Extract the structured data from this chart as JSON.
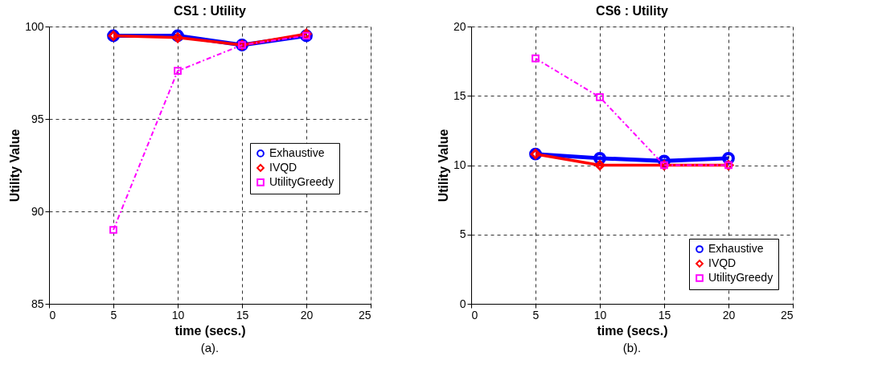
{
  "chart_data": [
    {
      "type": "line",
      "title": "CS1 : Utility",
      "xlabel": "time (secs.)",
      "ylabel": "Utility Value",
      "x": [
        5,
        10,
        15,
        20
      ],
      "xlim": [
        0,
        25
      ],
      "xticks": [
        0,
        5,
        10,
        15,
        20,
        25
      ],
      "ylim": [
        85,
        100
      ],
      "yticks": [
        85,
        90,
        95,
        100
      ],
      "grid": true,
      "legend": "right",
      "annotations": [
        "(a)."
      ],
      "series": [
        {
          "name": "Exhaustive",
          "color": "#0000ff",
          "values": [
            99.5,
            99.5,
            99.0,
            99.5
          ],
          "marker": "circle",
          "line_style": "solid"
        },
        {
          "name": "IVQD",
          "color": "#ff0000",
          "values": [
            99.5,
            99.4,
            99.0,
            99.6
          ],
          "marker": "diamond",
          "line_style": "solid"
        },
        {
          "name": "UtilityGreedy",
          "color": "#ff00ff",
          "values": [
            89.0,
            97.6,
            99.0,
            99.5
          ],
          "marker": "square",
          "line_style": "dashed"
        }
      ]
    },
    {
      "type": "line",
      "title": "CS6 : Utility",
      "xlabel": "time (secs.)",
      "ylabel": "Utility Value",
      "x": [
        5,
        10,
        15,
        20
      ],
      "xlim": [
        0,
        25
      ],
      "xticks": [
        0,
        5,
        10,
        15,
        20,
        25
      ],
      "ylim": [
        0,
        20
      ],
      "yticks": [
        0,
        5,
        10,
        15,
        20
      ],
      "grid": true,
      "legend": "bottom right",
      "annotations": [
        "(b)."
      ],
      "series": [
        {
          "name": "Exhaustive",
          "color": "#0000ff",
          "values": [
            10.8,
            10.5,
            10.3,
            10.5
          ],
          "marker": "circle",
          "line_style": "solid"
        },
        {
          "name": "IVQD",
          "color": "#ff0000",
          "values": [
            10.8,
            10.0,
            10.0,
            10.0
          ],
          "marker": "diamond",
          "line_style": "solid"
        },
        {
          "name": "UtilityGreedy",
          "color": "#ff00ff",
          "values": [
            17.7,
            14.9,
            10.0,
            10.0
          ],
          "marker": "square",
          "line_style": "dashed"
        }
      ]
    }
  ]
}
